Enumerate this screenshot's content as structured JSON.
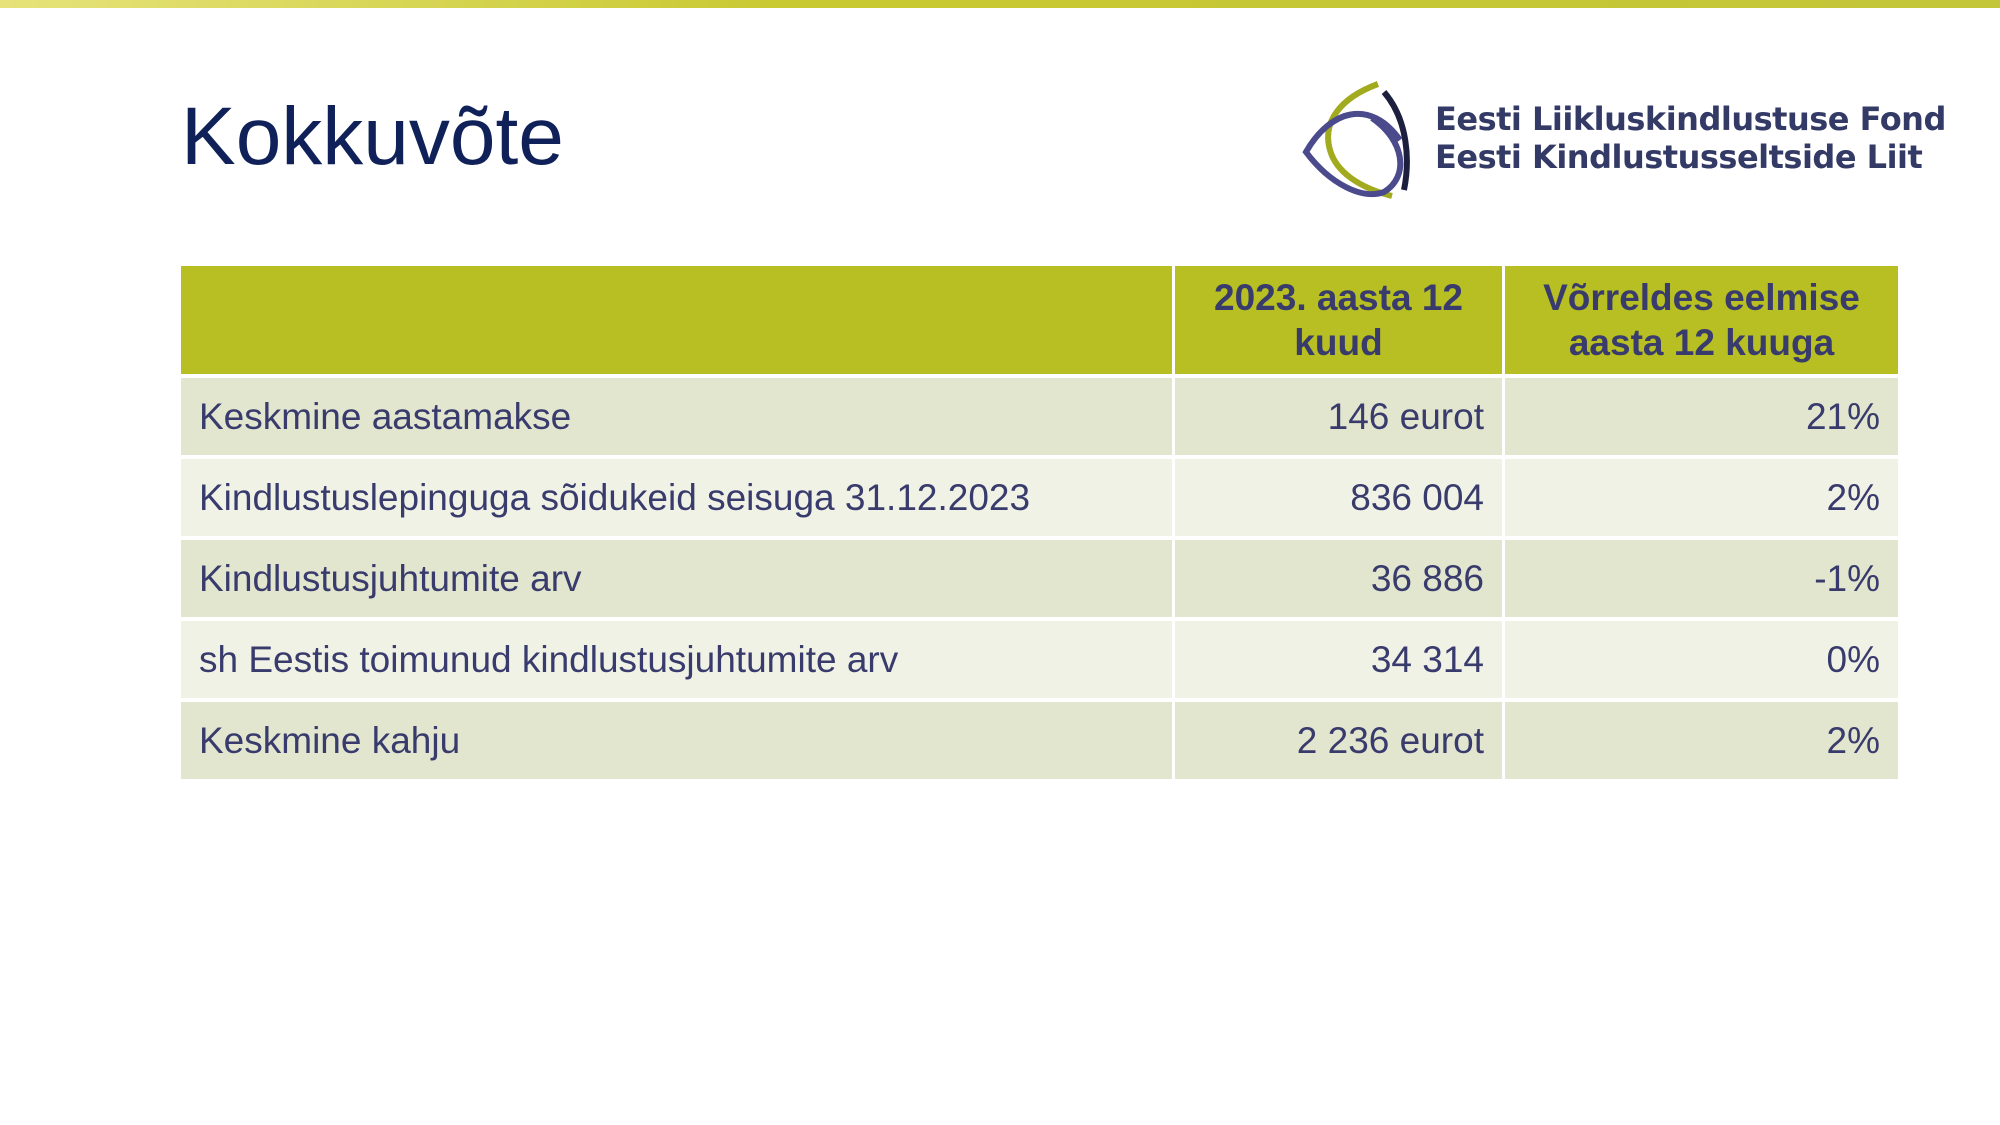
{
  "header": {
    "title": "Kokkuvõte",
    "logo": [
      "Eesti Liikluskindlustuse Fond",
      "Eesti Kindlustusseltside Liit"
    ]
  },
  "table": {
    "columns": [
      "",
      "2023. aasta 12 kuud",
      "Võrreldes eelmise aasta 12 kuuga"
    ],
    "rows": [
      [
        "Keskmine aastamakse",
        "146 eurot",
        "21%"
      ],
      [
        "Kindlustuslepinguga sõidukeid seisuga 31.12.2023",
        "836 004",
        "2%"
      ],
      [
        "Kindlustusjuhtumite arv",
        "36 886",
        "-1%"
      ],
      [
        "sh Eestis toimunud kindlustusjuhtumite arv",
        "34 314",
        "0%"
      ],
      [
        "Keskmine kahju",
        "2 236 eurot",
        "2%"
      ]
    ]
  }
}
